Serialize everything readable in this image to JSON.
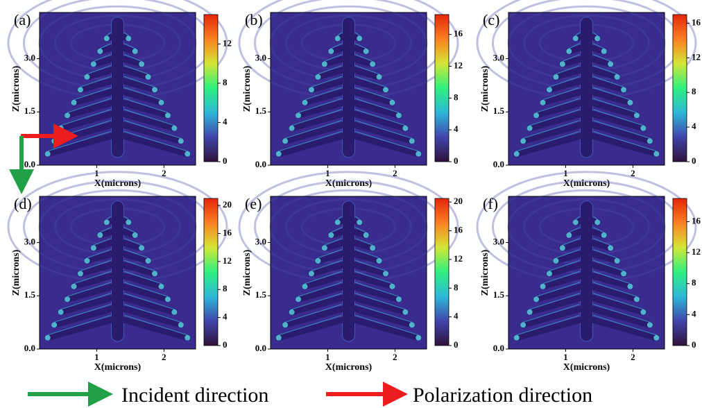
{
  "chart_data": [
    {
      "type": "field-map",
      "label": "(a)",
      "xlabel": "X(microns)",
      "ylabel": "Z(microns)",
      "xlim": [
        0.15,
        2.47
      ],
      "ylim": [
        0,
        4.3
      ],
      "xticks": [
        1,
        2
      ],
      "yticks": [
        {
          "value": 0,
          "label": "0.0"
        },
        {
          "value": 1.5,
          "label": "1.5"
        },
        {
          "value": 3,
          "label": "3.0"
        }
      ],
      "clim": [
        0,
        15
      ],
      "cticks": [
        0,
        4,
        8,
        12
      ],
      "colormap": [
        "#30123b",
        "#4145ab",
        "#2db7d7",
        "#2ef07f",
        "#d4e735",
        "#fb8022",
        "#e5260b"
      ]
    },
    {
      "type": "field-map",
      "label": "(b)",
      "xlabel": "X(microns)",
      "ylabel": "Z(microns)",
      "xlim": [
        0.15,
        2.47
      ],
      "ylim": [
        0,
        4.3
      ],
      "xticks": [
        1,
        2
      ],
      "yticks": [
        {
          "value": 0,
          "label": "0.0"
        },
        {
          "value": 1.5,
          "label": "1.5"
        },
        {
          "value": 3,
          "label": "3.0"
        }
      ],
      "clim": [
        0,
        18.5
      ],
      "cticks": [
        0,
        4,
        8,
        12,
        16
      ],
      "colormap": [
        "#30123b",
        "#4145ab",
        "#2db7d7",
        "#2ef07f",
        "#d4e735",
        "#fb8022",
        "#e5260b"
      ]
    },
    {
      "type": "field-map",
      "label": "(c)",
      "xlabel": "X(microns)",
      "ylabel": "Z(microns)",
      "xlim": [
        0.15,
        2.47
      ],
      "ylim": [
        0,
        4.3
      ],
      "xticks": [
        1,
        2
      ],
      "yticks": [
        {
          "value": 0,
          "label": "0.0"
        },
        {
          "value": 1.5,
          "label": "1.5"
        },
        {
          "value": 3,
          "label": "3.0"
        }
      ],
      "clim": [
        0,
        17
      ],
      "cticks": [
        0,
        4,
        8,
        12,
        16
      ],
      "colormap": [
        "#30123b",
        "#4145ab",
        "#2db7d7",
        "#2ef07f",
        "#d4e735",
        "#fb8022",
        "#e5260b"
      ]
    },
    {
      "type": "field-map",
      "label": "(d)",
      "xlabel": "X(microns)",
      "ylabel": "Z(microns)",
      "xlim": [
        0.15,
        2.47
      ],
      "ylim": [
        0,
        4.3
      ],
      "xticks": [
        1,
        2
      ],
      "yticks": [
        {
          "value": 0,
          "label": "0.0"
        },
        {
          "value": 1.5,
          "label": "1.5"
        },
        {
          "value": 3,
          "label": "3.0"
        }
      ],
      "clim": [
        0,
        21
      ],
      "cticks": [
        0,
        4,
        8,
        12,
        16,
        20
      ],
      "colormap": [
        "#30123b",
        "#4145ab",
        "#2db7d7",
        "#2ef07f",
        "#d4e735",
        "#fb8022",
        "#e5260b"
      ]
    },
    {
      "type": "field-map",
      "label": "(e)",
      "xlabel": "X(microns)",
      "ylabel": "Z(microns)",
      "xlim": [
        0.15,
        2.47
      ],
      "ylim": [
        0,
        4.3
      ],
      "xticks": [
        1,
        2
      ],
      "yticks": [
        {
          "value": 0,
          "label": "0.0"
        },
        {
          "value": 1.5,
          "label": "1.5"
        },
        {
          "value": 3,
          "label": "3.0"
        }
      ],
      "clim": [
        0,
        20.5
      ],
      "cticks": [
        0,
        4,
        8,
        12,
        16,
        20
      ],
      "colormap": [
        "#30123b",
        "#4145ab",
        "#2db7d7",
        "#2ef07f",
        "#d4e735",
        "#fb8022",
        "#e5260b"
      ]
    },
    {
      "type": "field-map",
      "label": "(f)",
      "xlabel": "X(microns)",
      "ylabel": "Z(microns)",
      "xlim": [
        0.15,
        2.47
      ],
      "ylim": [
        0,
        4.3
      ],
      "xticks": [
        1,
        2
      ],
      "yticks": [
        {
          "value": 0,
          "label": "0.0"
        },
        {
          "value": 1.5,
          "label": "1.5"
        },
        {
          "value": 3,
          "label": "3.0"
        }
      ],
      "clim": [
        0,
        19
      ],
      "cticks": [
        0,
        4,
        8,
        12,
        16
      ],
      "colormap": [
        "#30123b",
        "#4145ab",
        "#2db7d7",
        "#2ef07f",
        "#d4e735",
        "#fb8022",
        "#e5260b"
      ]
    }
  ],
  "legend": {
    "incident": "Incident direction",
    "polarization": "Polarization direction"
  }
}
